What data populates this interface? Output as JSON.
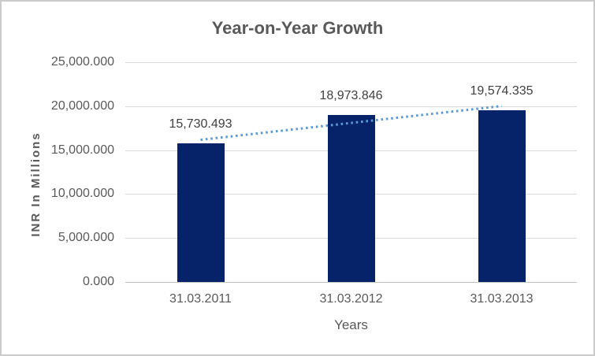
{
  "chart_data": {
    "type": "bar",
    "title": "Year-on-Year Growth",
    "xlabel": "Years",
    "ylabel": "INR In Millions",
    "categories": [
      "31.03.2011",
      "31.03.2012",
      "31.03.2013"
    ],
    "values": [
      15730.493,
      18973.846,
      19574.335
    ],
    "data_labels": [
      "15,730.493",
      "18,973.846",
      "19,574.335"
    ],
    "ylim": [
      0,
      25000
    ],
    "ytick_interval": 5000,
    "ytick_labels": [
      "0.000",
      "5,000.000",
      "10,000.000",
      "15,000.000",
      "20,000.000",
      "25,000.000"
    ],
    "grid": true,
    "legend": "none",
    "trendline": {
      "type": "linear",
      "style": "dotted"
    },
    "colors": {
      "bar": "#062269",
      "trendline": "#5b9bd5",
      "gridline": "#d9d9d9",
      "baseline": "#c3c3c3",
      "title_text": "#595959",
      "axis_text": "#595959",
      "data_label_text": "#404040",
      "frame_border": "#cbcbcb",
      "background": "#ffffff"
    }
  }
}
